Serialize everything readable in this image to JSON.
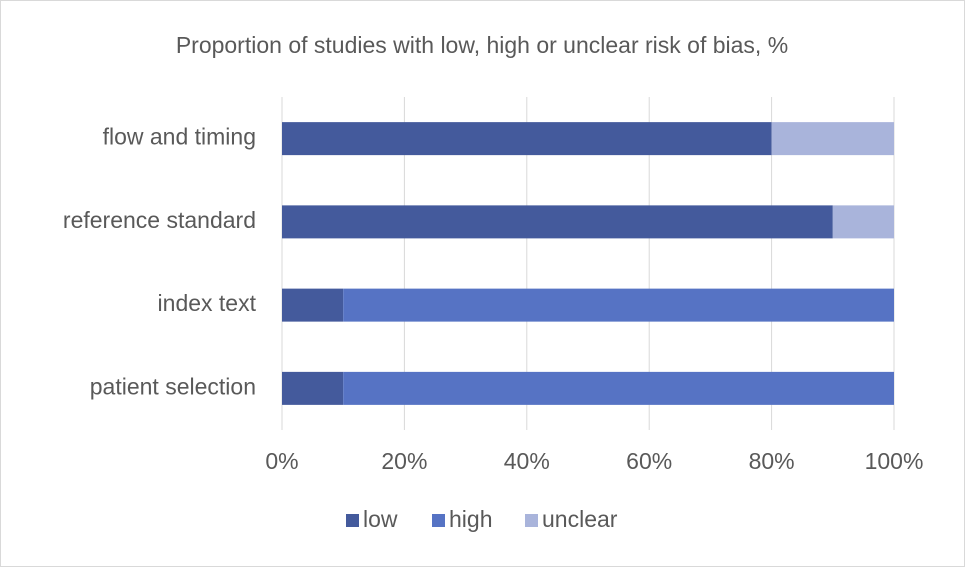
{
  "chart_data": {
    "type": "stacked_barh",
    "title": "Proportion of studies with low, high or unclear risk of bias, %",
    "categories": [
      "flow and timing",
      "reference standard",
      "index text",
      "patient selection"
    ],
    "series": [
      {
        "name": "low",
        "color": "#445a9c",
        "values": [
          80,
          90,
          10,
          10
        ]
      },
      {
        "name": "high",
        "color": "#5673c4",
        "values": [
          0,
          0,
          90,
          90
        ]
      },
      {
        "name": "unclear",
        "color": "#a9b4db",
        "values": [
          20,
          10,
          0,
          0
        ]
      }
    ],
    "xlim": [
      0,
      100
    ],
    "xticks": [
      {
        "value": 0,
        "label": "0%"
      },
      {
        "value": 20,
        "label": "20%"
      },
      {
        "value": 40,
        "label": "40%"
      },
      {
        "value": 60,
        "label": "60%"
      },
      {
        "value": 80,
        "label": "80%"
      },
      {
        "value": 100,
        "label": "100%"
      }
    ],
    "grid": true,
    "legend": "bottom"
  }
}
